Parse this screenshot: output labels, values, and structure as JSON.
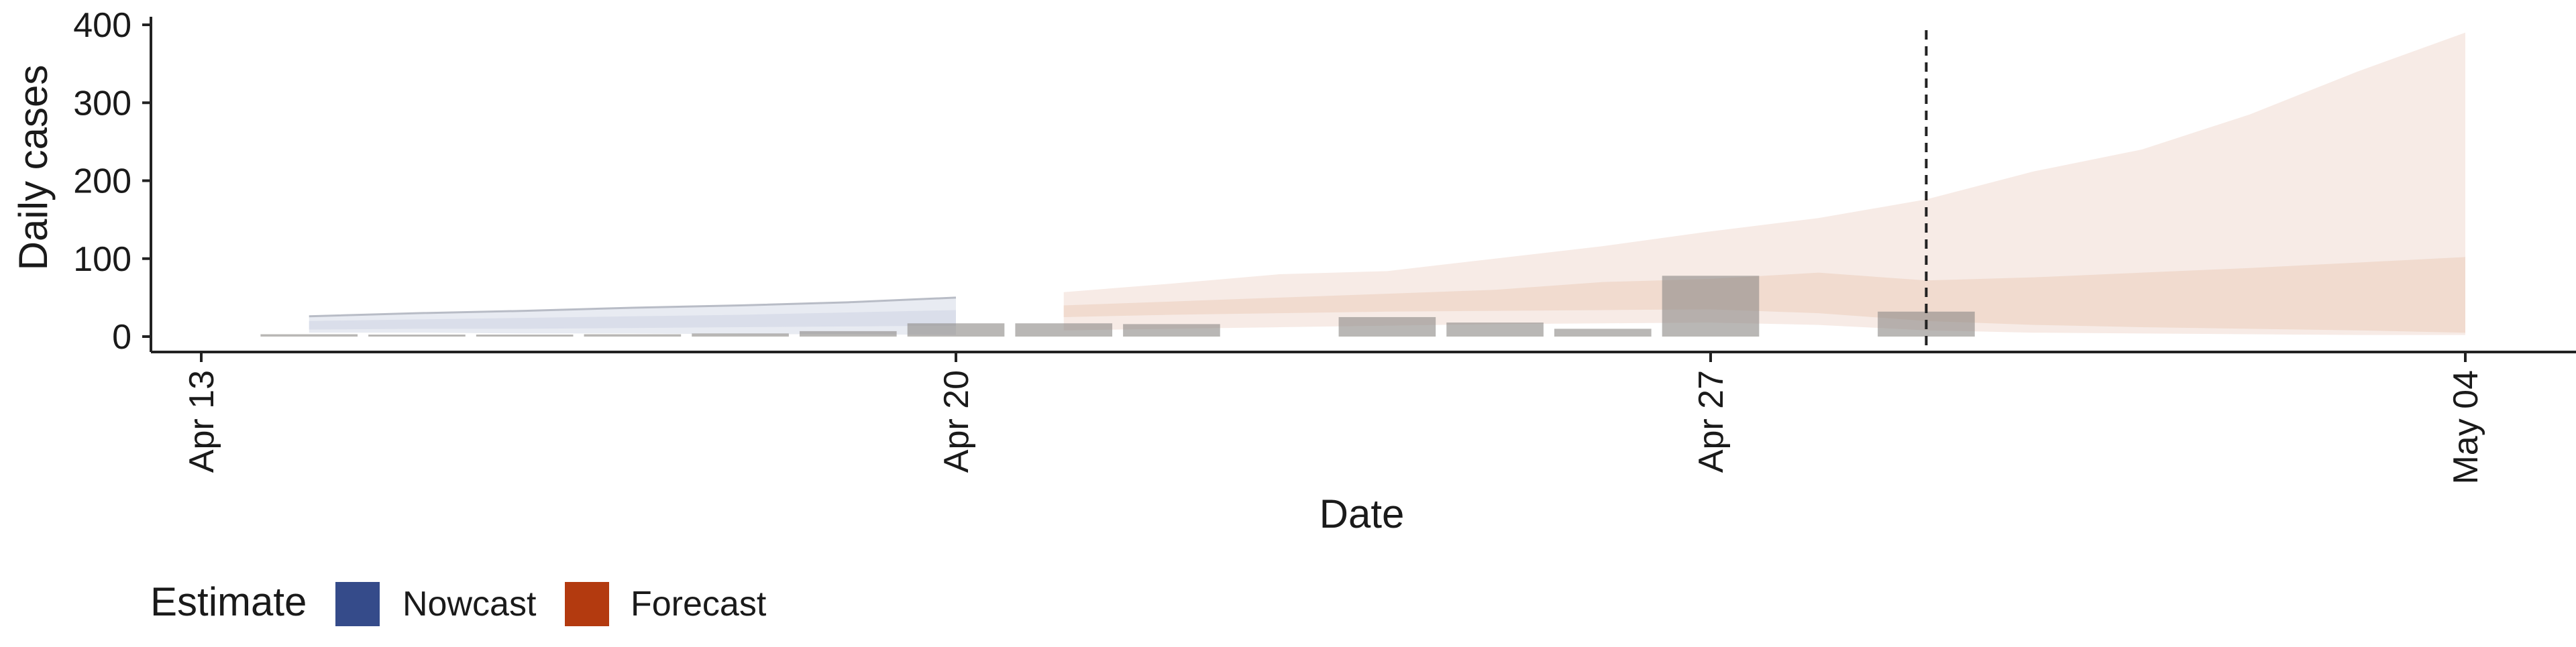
{
  "chart_data": {
    "type": "area",
    "xlabel": "Date",
    "ylabel": "Daily cases",
    "x_ticks": [
      "2020-04-13",
      "2020-04-20",
      "2020-04-27",
      "2020-05-04"
    ],
    "x_tick_labels": [
      "Apr 13",
      "Apr 20",
      "Apr 27",
      "May 04"
    ],
    "y_ticks": [
      0,
      100,
      200,
      300,
      400
    ],
    "ylim": [
      0,
      410
    ],
    "xlim": [
      "2020-04-13",
      "2020-05-04"
    ],
    "grid": false,
    "legend_position": "bottom-left",
    "legend": {
      "title": "Estimate",
      "items": [
        {
          "name": "Nowcast",
          "color": "#354b8a"
        },
        {
          "name": "Forecast",
          "color": "#b33a0f"
        }
      ]
    },
    "reference_line": {
      "x": "2020-04-29",
      "style": "dashed"
    },
    "bars": {
      "color": "#8e8a88",
      "x": [
        "2020-04-14",
        "2020-04-15",
        "2020-04-16",
        "2020-04-17",
        "2020-04-18",
        "2020-04-19",
        "2020-04-20",
        "2020-04-21",
        "2020-04-22",
        "2020-04-23",
        "2020-04-24",
        "2020-04-25",
        "2020-04-26",
        "2020-04-27",
        "2020-04-28",
        "2020-04-29"
      ],
      "values": [
        3,
        1,
        2,
        3,
        4,
        7,
        17,
        17,
        16,
        0,
        25,
        18,
        10,
        78,
        0,
        32
      ]
    },
    "series": [
      {
        "name": "Nowcast",
        "color": "#354b8a",
        "x": [
          "2020-04-14",
          "2020-04-15",
          "2020-04-16",
          "2020-04-17",
          "2020-04-18",
          "2020-04-19",
          "2020-04-20"
        ],
        "lower_outer": [
          5,
          5,
          4,
          4,
          3,
          3,
          2
        ],
        "upper_outer": [
          26,
          30,
          33,
          37,
          40,
          44,
          50
        ],
        "lower_inner": [
          9,
          10,
          10,
          11,
          12,
          13,
          14
        ],
        "upper_inner": [
          20,
          22,
          24,
          26,
          28,
          31,
          34
        ]
      },
      {
        "name": "Forecast",
        "color": "#d9915f",
        "x": [
          "2020-04-21",
          "2020-04-22",
          "2020-04-23",
          "2020-04-24",
          "2020-04-25",
          "2020-04-26",
          "2020-04-27",
          "2020-04-28",
          "2020-04-29",
          "2020-04-30",
          "2020-05-01",
          "2020-05-02",
          "2020-05-03",
          "2020-05-04"
        ],
        "lower_outer": [
          8,
          10,
          12,
          14,
          16,
          17,
          18,
          15,
          8,
          5,
          4,
          3,
          2,
          2
        ],
        "upper_outer": [
          57,
          68,
          80,
          84,
          100,
          116,
          135,
          152,
          176,
          212,
          240,
          285,
          340,
          390
        ],
        "lower_inner": [
          25,
          28,
          30,
          32,
          33,
          34,
          35,
          30,
          20,
          15,
          12,
          10,
          8,
          5
        ],
        "upper_inner": [
          40,
          45,
          50,
          55,
          60,
          70,
          74,
          82,
          72,
          76,
          82,
          88,
          95,
          102
        ]
      }
    ]
  }
}
